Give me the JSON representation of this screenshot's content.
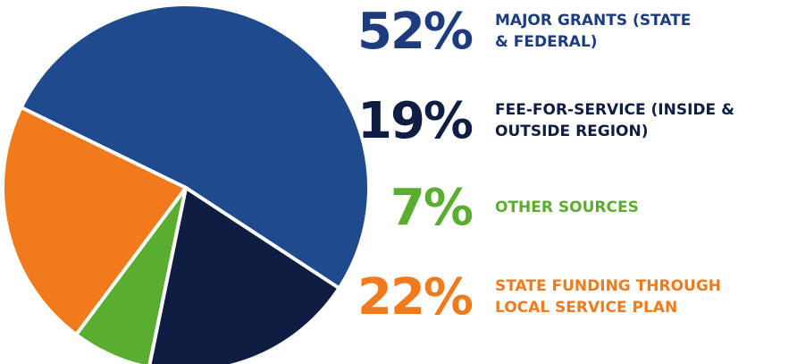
{
  "chart_data": {
    "type": "pie",
    "categories": [
      "MAJOR GRANTS (STATE & FEDERAL)",
      "FEE-FOR-SERVICE (INSIDE & OUTSIDE REGION)",
      "OTHER SOURCES",
      "STATE FUNDING THROUGH LOCAL SERVICE PLAN"
    ],
    "values": [
      52,
      19,
      7,
      22
    ],
    "value_labels": [
      "52%",
      "19%",
      "7%",
      "22%"
    ],
    "colors": [
      "#1f4b8e",
      "#0f1d42",
      "#5aad2f",
      "#f07a1c"
    ],
    "label_colors": [
      "#1d3c80",
      "#0f1d42",
      "#5aad2f",
      "#f07a1c"
    ]
  }
}
